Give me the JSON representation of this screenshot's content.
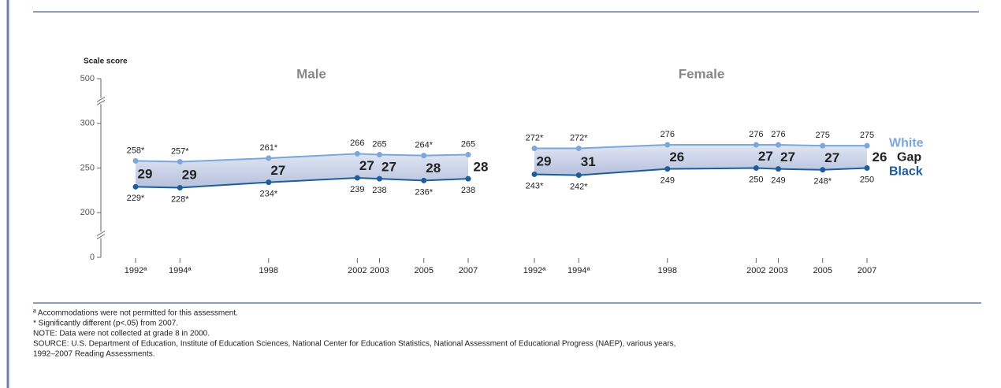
{
  "chart_data": [
    {
      "type": "line",
      "title": "Male",
      "y_label": "Scale score",
      "x": [
        1992,
        1994,
        1998,
        2002,
        2003,
        2005,
        2007
      ],
      "xlim": [
        1992,
        2007
      ],
      "xticks": [
        {
          "value": 1992,
          "label": "1992ª"
        },
        {
          "value": 1994,
          "label": "1994ª"
        },
        1998,
        2002,
        2003,
        2005,
        2007
      ],
      "ylim": [
        0,
        500
      ],
      "yticks": [
        0,
        200,
        250,
        300,
        500
      ],
      "axis_breaks": true,
      "series": [
        {
          "name": "White",
          "color": "#7ba7d9",
          "values": [
            258,
            257,
            261,
            266,
            265,
            264,
            265
          ],
          "value_labels": [
            "258*",
            "257*",
            "261*",
            "266",
            "265",
            "264*",
            "265"
          ]
        },
        {
          "name": "Black",
          "color": "#1f5d99",
          "values": [
            229,
            228,
            234,
            239,
            238,
            236,
            238
          ],
          "value_labels": [
            "229*",
            "228*",
            "234*",
            "239",
            "238",
            "236*",
            "238"
          ]
        }
      ],
      "gap": {
        "name": "Gap",
        "values": [
          29,
          29,
          27,
          27,
          27,
          28,
          28
        ]
      }
    },
    {
      "type": "line",
      "title": "Female",
      "x": [
        1992,
        1994,
        1998,
        2002,
        2003,
        2005,
        2007
      ],
      "xlim": [
        1992,
        2007
      ],
      "xticks": [
        {
          "value": 1992,
          "label": "1992ª"
        },
        {
          "value": 1994,
          "label": "1994ª"
        },
        1998,
        2002,
        2003,
        2005,
        2007
      ],
      "ylim": [
        0,
        500
      ],
      "yticks": [
        0,
        200,
        250,
        300,
        500
      ],
      "axis_breaks": true,
      "series": [
        {
          "name": "White",
          "color": "#7ba7d9",
          "values": [
            272,
            272,
            276,
            276,
            276,
            275,
            275
          ],
          "value_labels": [
            "272*",
            "272*",
            "276",
            "276",
            "276",
            "275",
            "275"
          ]
        },
        {
          "name": "Black",
          "color": "#1f5d99",
          "values": [
            243,
            242,
            249,
            250,
            249,
            248,
            250
          ],
          "value_labels": [
            "243*",
            "242*",
            "249",
            "250",
            "249",
            "248*",
            "250"
          ]
        }
      ],
      "gap": {
        "name": "Gap",
        "values": [
          29,
          31,
          26,
          27,
          27,
          27,
          26
        ]
      },
      "legend": "right"
    }
  ],
  "notes": [
    "ª Accommodations were not permitted for this assessment.",
    "* Significantly different (p<.05) from 2007.",
    "NOTE: Data were not collected at grade 8 in 2000.",
    "SOURCE: U.S. Department of Education, Institute of Education Sciences, National Center for Education Statistics, National Assessment of Educational Progress (NAEP), various years,",
    "1992–2007 Reading Assessments."
  ]
}
